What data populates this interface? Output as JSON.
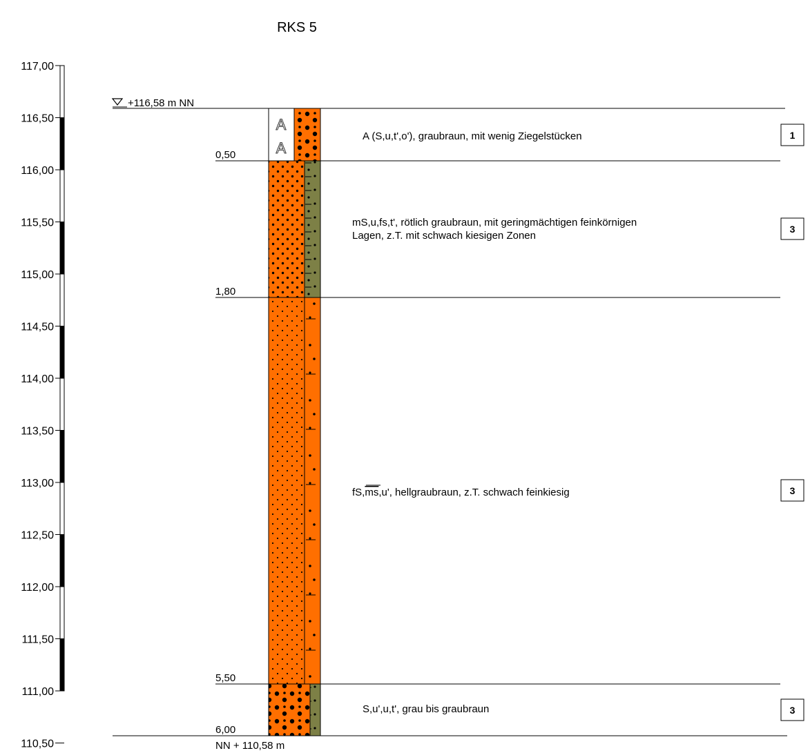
{
  "title": "RKS 5",
  "ground_level_label": "+116,58 m NN",
  "bottom_label": "NN + 110,58 m",
  "scale_ticks": [
    "117,00",
    "116,50",
    "116,00",
    "115,50",
    "115,00",
    "114,50",
    "114,00",
    "113,50",
    "113,00",
    "112,50",
    "112,00",
    "111,50",
    "111,00",
    "110,50"
  ],
  "depth_labels": [
    "0,50",
    "1,80",
    "5,50",
    "6,00"
  ],
  "layers": [
    {
      "top": 0.0,
      "bottom": 0.5,
      "description": "A (S,u,t',o'), graubraun, mit wenig Ziegelstücken",
      "description_line2": "",
      "class": "1"
    },
    {
      "top": 0.5,
      "bottom": 1.8,
      "description": "mS,u,fs,t', rötlich graubraun, mit geringmächtigen feinkörnigen",
      "description_line2": "Lagen, z.T. mit schwach kiesigen Zonen",
      "class": "3"
    },
    {
      "top": 1.8,
      "bottom": 5.5,
      "description_pre": "fS,",
      "description_overline": "ms",
      "description_post": ",u', hellgraubraun, z.T. schwach feinkiesig",
      "class": "3"
    },
    {
      "top": 5.5,
      "bottom": 6.0,
      "description": "S,u',u,t', grau bis graubraun",
      "description_line2": "",
      "class": "3"
    }
  ],
  "colors": {
    "sand": "#ff6f00",
    "silt": "#7d8046",
    "line": "#000000",
    "fill_marker": "#ffffff"
  },
  "icons": {
    "groundwater": "inverted-triangle-icon",
    "fill": "letter-a-symbol"
  }
}
